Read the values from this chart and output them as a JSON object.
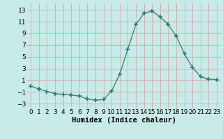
{
  "x": [
    0,
    1,
    2,
    3,
    4,
    5,
    6,
    7,
    8,
    9,
    10,
    11,
    12,
    13,
    14,
    15,
    16,
    17,
    18,
    19,
    20,
    21,
    22,
    23
  ],
  "y": [
    0.0,
    -0.5,
    -0.9,
    -1.3,
    -1.4,
    -1.5,
    -1.7,
    -2.2,
    -2.4,
    -2.3,
    -0.8,
    2.0,
    6.3,
    10.5,
    12.4,
    12.8,
    11.8,
    10.5,
    8.5,
    5.5,
    3.2,
    1.6,
    1.2,
    1.1
  ],
  "line_color": "#2e7d6e",
  "marker": "D",
  "marker_size": 2.5,
  "background_color": "#c8eae8",
  "grid_color": "#d4a0a0",
  "xlabel": "Humidex (Indice chaleur)",
  "xlim": [
    -0.5,
    23.5
  ],
  "ylim": [
    -3.8,
    14.2
  ],
  "yticks": [
    -3,
    -1,
    1,
    3,
    5,
    7,
    9,
    11,
    13
  ],
  "xtick_labels": [
    "0",
    "1",
    "2",
    "3",
    "4",
    "5",
    "6",
    "7",
    "8",
    "9",
    "10",
    "11",
    "12",
    "13",
    "14",
    "15",
    "16",
    "17",
    "18",
    "19",
    "20",
    "21",
    "22",
    "23"
  ],
  "font_size": 6.5
}
